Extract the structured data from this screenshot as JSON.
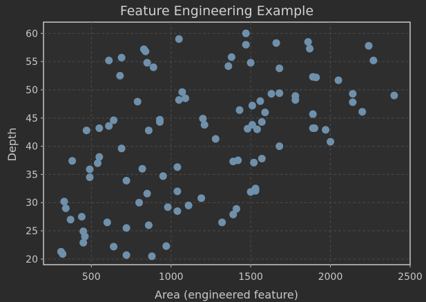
{
  "chart_data": {
    "type": "scatter",
    "title": "Feature Engineering Example",
    "xlabel": "Area (engineered feature)",
    "ylabel": "Depth",
    "xlim": [
      200,
      2500
    ],
    "ylim": [
      19,
      62
    ],
    "xticks": [
      500,
      1000,
      1500,
      2000,
      2500
    ],
    "yticks": [
      20,
      25,
      30,
      35,
      40,
      45,
      50,
      55,
      60
    ],
    "grid": true,
    "point_color": "#6f90ab",
    "background_color": "#2e2e2e",
    "series": [
      {
        "x": [
          1470,
          1050,
          1470,
          1660,
          1860,
          1870,
          2240,
          2270,
          830,
          840,
          610,
          690,
          850,
          890,
          1380,
          1360,
          1500,
          1680,
          680,
          1890,
          1910,
          2050,
          1070,
          1090,
          1050,
          1630,
          1680,
          1780,
          1780,
          2140,
          2400,
          2140,
          1560,
          1510,
          790,
          1430,
          1590,
          2200,
          1890,
          1200,
          1210,
          930,
          930,
          640,
          610,
          1570,
          1510,
          1540,
          1480,
          550,
          470,
          860,
          1280,
          1970,
          1890,
          1900,
          2000,
          1680,
          690,
          550,
          540,
          1570,
          1520,
          1420,
          1390,
          380,
          820,
          1040,
          490,
          490,
          950,
          720,
          1040,
          850,
          1500,
          1530,
          1530,
          330,
          340,
          800,
          1190,
          1110,
          980,
          1040,
          1410,
          1390,
          1320,
          440,
          370,
          600,
          720,
          450,
          860,
          460,
          450,
          640,
          970,
          310,
          320,
          720,
          880
        ],
        "y": [
          60.0,
          59.0,
          58.0,
          58.3,
          58.5,
          57.3,
          57.8,
          55.2,
          57.2,
          56.8,
          55.2,
          55.7,
          54.8,
          54.0,
          55.8,
          54.2,
          54.8,
          53.8,
          52.5,
          52.3,
          52.2,
          51.7,
          49.6,
          48.5,
          48.2,
          49.3,
          49.4,
          48.9,
          48.2,
          49.3,
          49.0,
          47.8,
          48.0,
          47.2,
          47.9,
          46.4,
          46.0,
          46.1,
          45.7,
          44.9,
          43.8,
          44.7,
          44.3,
          44.6,
          43.6,
          44.3,
          43.8,
          43.0,
          43.1,
          43.2,
          42.8,
          42.8,
          41.3,
          42.9,
          43.2,
          43.2,
          40.8,
          40.0,
          39.6,
          38.1,
          37.0,
          37.8,
          37.1,
          37.5,
          37.3,
          37.4,
          36.0,
          36.3,
          35.9,
          34.5,
          34.7,
          33.9,
          32.0,
          31.6,
          31.9,
          32.1,
          32.5,
          30.2,
          29.0,
          30.0,
          30.8,
          29.5,
          29.2,
          28.5,
          28.9,
          27.9,
          26.5,
          27.5,
          27.0,
          26.5,
          25.5,
          24.9,
          26.0,
          24.0,
          22.9,
          22.2,
          22.3,
          21.3,
          20.9,
          20.7,
          20.5
        ]
      }
    ]
  }
}
